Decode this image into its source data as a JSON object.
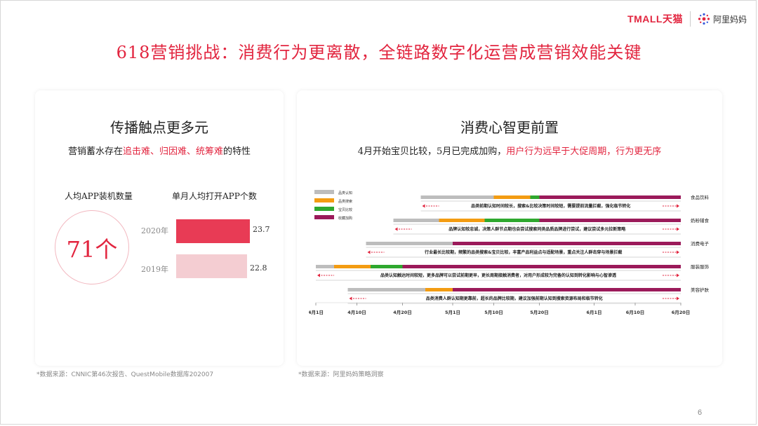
{
  "brand": {
    "tmall": "TMALL天猫",
    "alimama": "阿里妈妈"
  },
  "title": "618营销挑战：消费行为更离散，全链路数字化运营成营销效能关键",
  "left": {
    "title": "传播触点更多元",
    "subtitle_prefix": "营销蓄水存在",
    "subtitle_highlight": "追击难、归因难、统筹难",
    "subtitle_suffix": "的特性",
    "metric1_label": "人均APP装机数量",
    "metric1_value": "71个",
    "metric2_label": "单月人均打开APP个数",
    "bars": [
      {
        "year": "2020年",
        "value": 23.7,
        "label": "23.7",
        "color": "#e83b55"
      },
      {
        "year": "2019年",
        "value": 22.8,
        "label": "22.8",
        "color": "#f4cdd2"
      }
    ],
    "source": "*数据来源：CNNIC第46次报告、QuestMobile数据库202007"
  },
  "right": {
    "title": "消费心智更前置",
    "subtitle_prefix": "4月开始宝贝比较，5月已完成加购，",
    "subtitle_highlight": "用户行为远早于大促周期，行为更无序",
    "source": "*数据来源：阿里妈妈策略洞察"
  },
  "chart_data": {
    "type": "timeline",
    "legend": [
      {
        "name": "品类认知",
        "color": "#bdbdbd"
      },
      {
        "name": "品类搜索",
        "color": "#f39c12"
      },
      {
        "name": "宝贝比较",
        "color": "#2ea82e"
      },
      {
        "name": "收藏加购",
        "color": "#9b1a5a"
      }
    ],
    "x_ticks": [
      "4月1日",
      "4月10日",
      "4月20日",
      "5月1日",
      "5月10日",
      "5月20日",
      "6月1日",
      "6月10日",
      "6月20日"
    ],
    "categories": [
      {
        "name": "食品饮料",
        "segments": [
          [
            "4月24日",
            "5月10日"
          ],
          [
            "5月10日",
            "5月18日"
          ],
          [
            "5月18日",
            "5月20日"
          ],
          [
            "5月20日",
            "6月20日"
          ]
        ],
        "note": "品类前期认知时间较长，搜索&比较决策时间较短，需要提前流量拦截，强化临节转化"
      },
      {
        "name": "奶粉辅食",
        "segments": [
          [
            "4月18日",
            "4月28日"
          ],
          [
            "4月28日",
            "5月8日"
          ],
          [
            "5月8日",
            "5月20日"
          ],
          [
            "5月20日",
            "6月20日"
          ]
        ],
        "note": "品牌认知较忠诚，决策人群节点期也会尝试搜索同类品质品牌进行尝试，建议尝试多元拉新策略"
      },
      {
        "name": "消费电子",
        "segments": [
          [
            "4月12日",
            "5月1日"
          ],
          [
            "5月1日",
            "5月1日"
          ],
          [
            "5月1日",
            "6月20日"
          ],
          [
            "5月1日",
            "6月20日"
          ]
        ],
        "note": "行业最长比较期，频繁的品类搜索&宝贝比较，丰富产品利益点与适配场景，重点关注人群击穿与场景拦截"
      },
      {
        "name": "服装服饰",
        "segments": [
          [
            "4月1日",
            "4月5日"
          ],
          [
            "4月5日",
            "4月13日"
          ],
          [
            "4月13日",
            "4月20日"
          ],
          [
            "4月20日",
            "6月20日"
          ]
        ],
        "note": "品类认知触达时间较短，更多品牌可以尝试前期更早，更长周期接触消费者，对用户形成较为完备的认知到转化影响与心智渗透"
      },
      {
        "name": "美容护肤",
        "segments": [
          [
            "4月8日",
            "4月25日"
          ],
          [
            "4月25日",
            "5月1日"
          ],
          [
            "5月1日",
            "6月20日"
          ],
          [
            "5月1日",
            "6月20日"
          ]
        ],
        "note": "品类消费人群认知期更靠前，超长的品牌比较期，建议加强前期认知到搜索资源布局和临节转化"
      }
    ]
  },
  "page_number": "6"
}
